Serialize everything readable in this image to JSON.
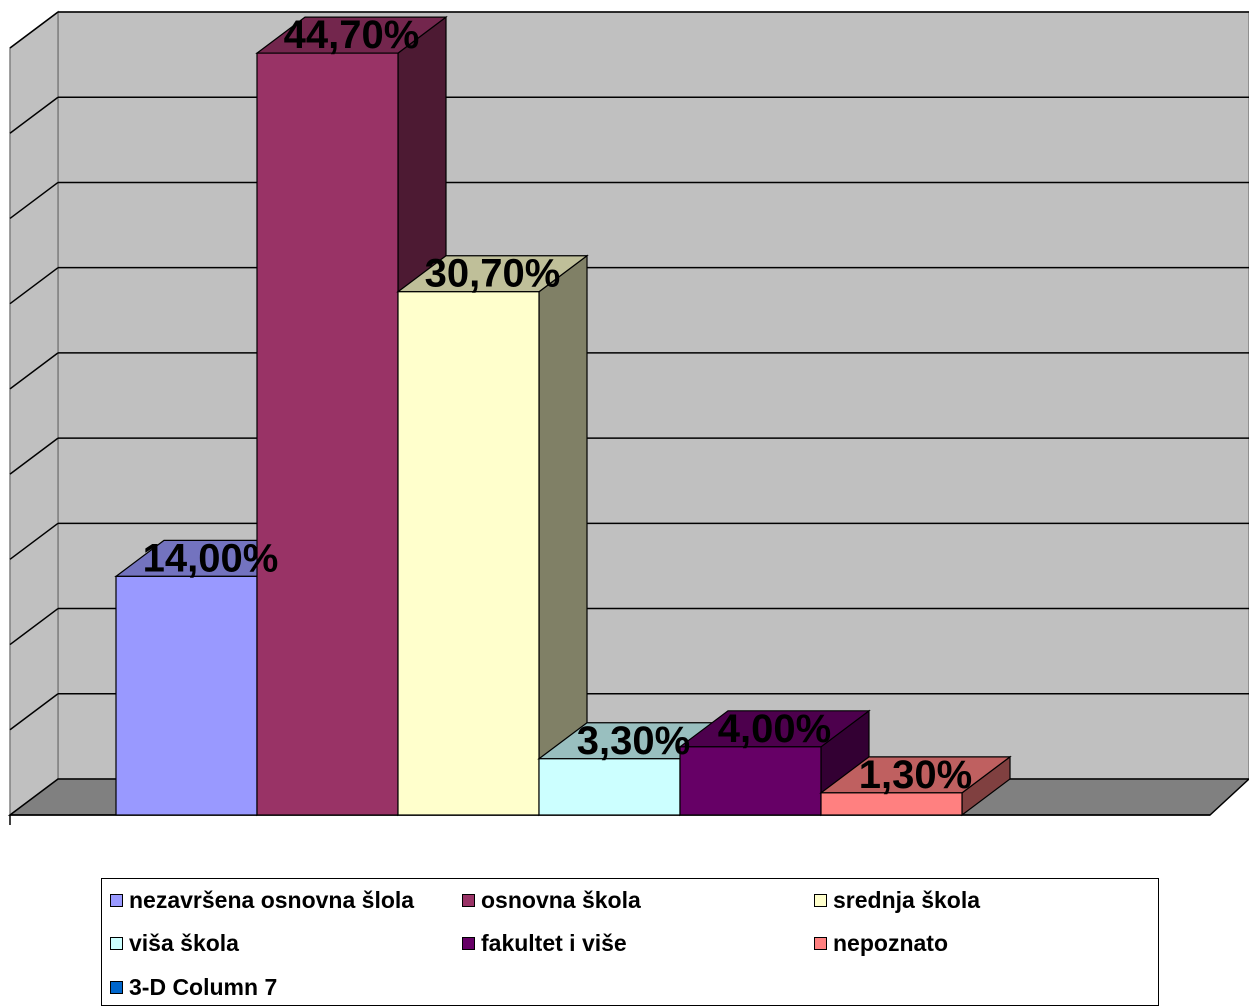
{
  "chart_data": {
    "type": "bar",
    "style": "3d-column",
    "categories": [
      "nezavršena osnovna šlola",
      "osnovna škola",
      "srednja škola",
      "viša škola",
      "fakultet i više",
      "nepoznato",
      "3-D Column 7"
    ],
    "values": [
      14.0,
      44.7,
      30.7,
      3.3,
      4.0,
      1.3,
      null
    ],
    "data_labels": [
      "14,00%",
      "44,70%",
      "30,70%",
      "3,30%",
      "4,00%",
      "1,30%",
      ""
    ],
    "colors": [
      "#9999ff",
      "#993366",
      "#ffffcc",
      "#ccffff",
      "#660066",
      "#ff8080",
      "#0066cc"
    ],
    "ylim": [
      0,
      45
    ],
    "grid": true,
    "legend_position": "bottom",
    "title": "",
    "xlabel": "",
    "ylabel": ""
  }
}
